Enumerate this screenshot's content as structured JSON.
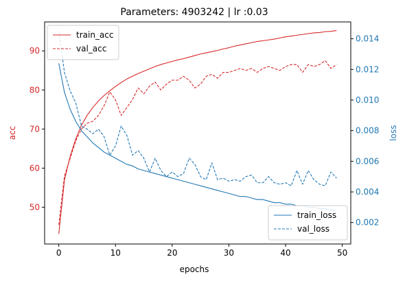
{
  "chart_data": {
    "type": "line",
    "title": "Parameters: 4903242 | lr :0.03",
    "xlabel": "epochs",
    "ylabel_left": "acc",
    "ylabel_right": "loss",
    "xlim": [
      -2.5,
      51.5
    ],
    "ylim_left": [
      40.6,
      97.4
    ],
    "ylim_right": [
      0.0006,
      0.0151
    ],
    "x_ticks": [
      0,
      10,
      20,
      30,
      40,
      50
    ],
    "y_left_ticks": [
      50,
      60,
      70,
      80,
      90
    ],
    "y_right_ticks": [
      0.002,
      0.004,
      0.006,
      0.008,
      0.01,
      0.012,
      0.014
    ],
    "grid": false,
    "colors": {
      "acc": "#d62728",
      "loss": "#1f77b4"
    },
    "legend_left": {
      "placement": "upper left",
      "entries": [
        "train_acc",
        "val_acc"
      ]
    },
    "legend_right": {
      "placement": "lower right",
      "entries": [
        "train_loss",
        "val_loss"
      ]
    },
    "x": [
      0,
      1,
      2,
      3,
      4,
      5,
      6,
      7,
      8,
      9,
      10,
      11,
      12,
      13,
      14,
      15,
      16,
      17,
      18,
      19,
      20,
      21,
      22,
      23,
      24,
      25,
      26,
      27,
      28,
      29,
      30,
      31,
      32,
      33,
      34,
      35,
      36,
      37,
      38,
      39,
      40,
      41,
      42,
      43,
      44,
      45,
      46,
      47,
      48,
      49
    ],
    "series": [
      {
        "name": "train_acc",
        "axis": "left",
        "style": "solid",
        "values": [
          43.2,
          57.0,
          63.0,
          67.5,
          71.0,
          73.5,
          75.5,
          77.2,
          78.6,
          79.8,
          80.9,
          81.9,
          82.8,
          83.5,
          84.2,
          84.8,
          85.4,
          86.0,
          86.5,
          86.9,
          87.3,
          87.7,
          88.0,
          88.4,
          88.8,
          89.2,
          89.5,
          89.8,
          90.1,
          90.5,
          90.8,
          91.2,
          91.5,
          91.8,
          92.1,
          92.4,
          92.6,
          92.8,
          93.0,
          93.3,
          93.6,
          93.8,
          94.0,
          94.2,
          94.4,
          94.6,
          94.7,
          94.9,
          95.0,
          95.2
        ]
      },
      {
        "name": "val_acc",
        "axis": "left",
        "style": "dashed",
        "values": [
          45.5,
          58.0,
          62.5,
          67.0,
          70.0,
          71.5,
          72.0,
          73.5,
          76.0,
          79.5,
          77.5,
          73.5,
          75.5,
          77.5,
          80.5,
          79.0,
          81.0,
          82.0,
          80.0,
          81.5,
          82.5,
          82.5,
          83.5,
          82.5,
          80.5,
          81.5,
          83.5,
          84.0,
          83.0,
          84.5,
          84.5,
          85.0,
          85.5,
          85.0,
          85.5,
          84.5,
          85.5,
          86.0,
          85.5,
          85.0,
          86.0,
          86.5,
          86.5,
          84.5,
          86.5,
          86.0,
          86.5,
          87.5,
          85.5,
          86.5
        ]
      },
      {
        "name": "train_loss",
        "axis": "right",
        "style": "solid",
        "values": [
          0.0124,
          0.0105,
          0.0094,
          0.0086,
          0.008,
          0.0076,
          0.0072,
          0.0069,
          0.0066,
          0.0064,
          0.0062,
          0.006,
          0.0058,
          0.0057,
          0.0055,
          0.0054,
          0.0053,
          0.0052,
          0.0051,
          0.005,
          0.0049,
          0.0048,
          0.0047,
          0.0046,
          0.0045,
          0.0044,
          0.0043,
          0.0042,
          0.0041,
          0.004,
          0.0039,
          0.0038,
          0.0037,
          0.0037,
          0.0036,
          0.0035,
          0.0035,
          0.0034,
          0.0033,
          0.0033,
          0.0032,
          0.0032,
          0.0031,
          0.0031,
          0.003,
          0.003,
          0.0029,
          0.0029,
          0.0028,
          0.0028
        ]
      },
      {
        "name": "val_loss",
        "axis": "right",
        "style": "dashed",
        "values": [
          0.0145,
          0.0118,
          0.0106,
          0.0098,
          0.0083,
          0.0081,
          0.0078,
          0.0081,
          0.0076,
          0.0064,
          0.007,
          0.0083,
          0.0077,
          0.0064,
          0.0067,
          0.0062,
          0.0053,
          0.0062,
          0.0054,
          0.005,
          0.0053,
          0.005,
          0.0052,
          0.0062,
          0.0058,
          0.005,
          0.0048,
          0.0059,
          0.0048,
          0.0049,
          0.0047,
          0.0048,
          0.0047,
          0.005,
          0.0051,
          0.0046,
          0.0046,
          0.005,
          0.0046,
          0.0045,
          0.0046,
          0.0044,
          0.0054,
          0.0045,
          0.0054,
          0.0048,
          0.0045,
          0.0044,
          0.0053,
          0.0049
        ]
      }
    ]
  }
}
